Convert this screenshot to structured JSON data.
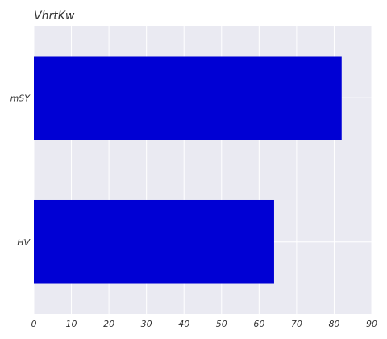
{
  "chart_data": {
    "type": "bar",
    "orientation": "horizontal",
    "title": "VhrtKw",
    "xlabel": "",
    "ylabel": "",
    "categories": [
      "mSY",
      "HV"
    ],
    "values": [
      82,
      64
    ],
    "xlim": [
      0,
      90
    ],
    "xticks": [
      0,
      10,
      20,
      30,
      40,
      50,
      60,
      70,
      80,
      90
    ],
    "grid": true,
    "legend": "none",
    "bar_color": "#0000d4",
    "plot_background": "#eaeaf2",
    "grid_color": "#ffffff"
  }
}
